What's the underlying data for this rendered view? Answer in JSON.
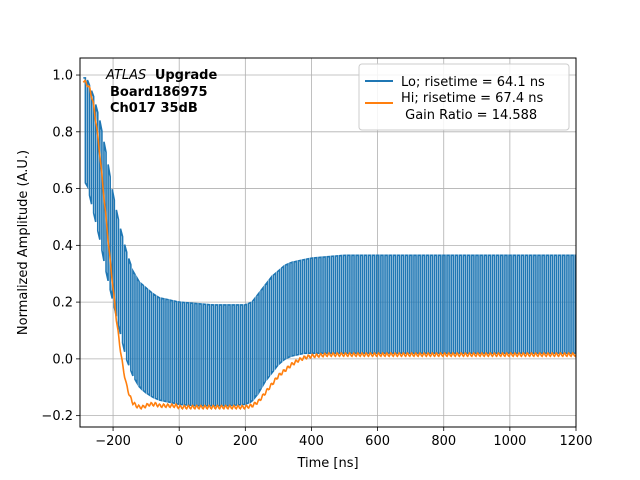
{
  "chart_data": {
    "type": "line",
    "xlabel": "Time [ns]",
    "ylabel": "Normalized Amplitude (A.U.)",
    "xlim": [
      -300,
      1200
    ],
    "ylim": [
      -0.24,
      1.06
    ],
    "xticks": [
      -200,
      0,
      200,
      400,
      600,
      800,
      1000,
      1200
    ],
    "xtick_labels": [
      "−200",
      "0",
      "200",
      "400",
      "600",
      "800",
      "1000",
      "1200"
    ],
    "yticks": [
      -0.2,
      0.0,
      0.2,
      0.4,
      0.6,
      0.8,
      1.0
    ],
    "ytick_labels": [
      "−0.2",
      "0.0",
      "0.2",
      "0.4",
      "0.6",
      "0.8",
      "1.0"
    ],
    "grid": true,
    "legend_position": "top-right",
    "annotation": {
      "italic": "ATLAS",
      "bold": "Upgrade",
      "line2": "Board186975",
      "line3": "Ch017 35dB"
    },
    "series": [
      {
        "name": "Lo; risetime = 64.1 ns",
        "label": "Lo; risetime = 64.1 ns",
        "color": "#1f77b4",
        "style": "oscillating",
        "period_ns": 12.5,
        "envelope_x": [
          -290,
          -280,
          -260,
          -240,
          -220,
          -200,
          -180,
          -160,
          -140,
          -120,
          -100,
          -80,
          -60,
          -40,
          -20,
          0,
          50,
          100,
          150,
          200,
          220,
          240,
          260,
          280,
          300,
          320,
          340,
          360,
          380,
          400,
          450,
          500,
          600,
          700,
          800,
          900,
          1000,
          1100,
          1200
        ],
        "upper": [
          0.99,
          0.99,
          0.93,
          0.84,
          0.72,
          0.58,
          0.47,
          0.38,
          0.31,
          0.27,
          0.25,
          0.23,
          0.215,
          0.21,
          0.205,
          0.2,
          0.195,
          0.19,
          0.19,
          0.19,
          0.2,
          0.23,
          0.26,
          0.29,
          0.31,
          0.33,
          0.34,
          0.345,
          0.35,
          0.355,
          0.36,
          0.365,
          0.365,
          0.365,
          0.365,
          0.365,
          0.365,
          0.365,
          0.365
        ],
        "lower": [
          0.62,
          0.62,
          0.52,
          0.42,
          0.3,
          0.2,
          0.1,
          0.0,
          -0.06,
          -0.1,
          -0.12,
          -0.135,
          -0.145,
          -0.15,
          -0.155,
          -0.16,
          -0.165,
          -0.165,
          -0.165,
          -0.16,
          -0.15,
          -0.12,
          -0.08,
          -0.05,
          -0.02,
          0.0,
          0.01,
          0.015,
          0.02,
          0.02,
          0.02,
          0.02,
          0.02,
          0.02,
          0.02,
          0.02,
          0.02,
          0.02,
          0.02
        ]
      },
      {
        "name": "Hi; risetime = 67.4 ns",
        "label": "Hi; risetime = 67.4 ns",
        "label2": " Gain Ratio = 14.588",
        "color": "#ff7f0e",
        "style": "line",
        "x": [
          -290,
          -280,
          -270,
          -260,
          -250,
          -240,
          -230,
          -220,
          -210,
          -200,
          -190,
          -180,
          -170,
          -160,
          -150,
          -140,
          -130,
          -120,
          -110,
          -100,
          -90,
          -80,
          -70,
          -60,
          -50,
          -40,
          -30,
          -20,
          -10,
          0,
          50,
          100,
          150,
          200,
          220,
          240,
          260,
          280,
          300,
          320,
          340,
          360,
          380,
          400,
          450,
          500,
          600,
          700,
          800,
          900,
          1000,
          1100,
          1200
        ],
        "y": [
          0.98,
          0.97,
          0.95,
          0.9,
          0.82,
          0.72,
          0.6,
          0.48,
          0.36,
          0.25,
          0.14,
          0.05,
          -0.03,
          -0.09,
          -0.13,
          -0.155,
          -0.165,
          -0.17,
          -0.17,
          -0.165,
          -0.16,
          -0.16,
          -0.16,
          -0.165,
          -0.165,
          -0.165,
          -0.165,
          -0.165,
          -0.165,
          -0.17,
          -0.17,
          -0.17,
          -0.17,
          -0.17,
          -0.165,
          -0.15,
          -0.12,
          -0.09,
          -0.06,
          -0.04,
          -0.02,
          -0.005,
          0.005,
          0.01,
          0.015,
          0.015,
          0.015,
          0.015,
          0.015,
          0.015,
          0.015,
          0.015,
          0.015
        ]
      }
    ]
  }
}
